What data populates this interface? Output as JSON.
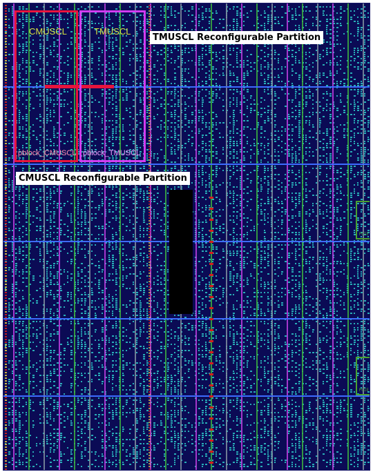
{
  "view": {
    "background": "#0b0b55"
  },
  "pblocks": {
    "cmuscl": {
      "top_name": "CMUSCL",
      "bottom_name": "pblock_CMUSCL",
      "color": "#e8143c"
    },
    "tmuscl": {
      "top_name": "TMUSCL",
      "bottom_name": "pblock_TMUSCL",
      "color": "#d23cf0"
    }
  },
  "annotations": {
    "tmuscl_partition": "TMUSCL Reconfigurable Partition",
    "cmuscl_partition": "CMUSCL Reconfigurable Partition"
  },
  "colors": {
    "logic_cell": "#2fd6d0",
    "clock_region_line": "#3d6cff",
    "column_magenta": "#c040e0",
    "column_green": "#3cb040",
    "column_gray": "#8090a0",
    "io_red": "#d02020",
    "io_yellow": "#e0c040"
  }
}
